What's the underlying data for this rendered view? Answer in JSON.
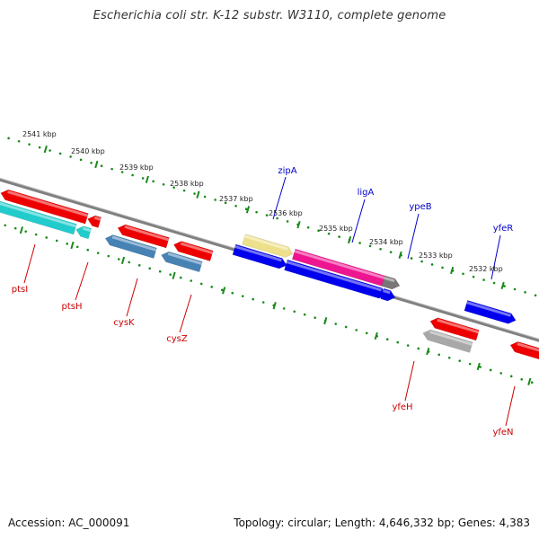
{
  "title": "Escherichia coli str. K-12 substr. W3110, complete genome",
  "footer": {
    "accession_label": "Accession:",
    "accession": "AC_000091",
    "topology_label": "Topology:",
    "topology": "circular",
    "length_label": "Length:",
    "length": "4,646,332 bp",
    "genes_label": "Genes:",
    "genes": "4,383"
  },
  "scale": {
    "ticks": [
      "2541 kbp",
      "2540 kbp",
      "2539 kbp",
      "2538 kbp",
      "2537 kbp",
      "2536 kbp",
      "2535 kbp",
      "2534 kbp",
      "2533 kbp",
      "2532 kbp"
    ]
  },
  "colors": {
    "forward_label": "#0000cc",
    "reverse_label": "#cc0000",
    "backbone": "#808080",
    "tick_marks": "#1a8a1a",
    "red": "#ee0000",
    "cyan": "#22cccc",
    "steelblue": "#4682b4",
    "khaki": "#eee08a",
    "blue": "#0000ee",
    "magenta": "#ee1590",
    "gray": "#a8a8a8"
  },
  "genes": [
    {
      "name": "ptsI",
      "strand": "reverse",
      "color": "cyan"
    },
    {
      "name": "ptsH",
      "strand": "reverse",
      "color": "cyan"
    },
    {
      "name": "cysK",
      "strand": "reverse",
      "color": "steelblue"
    },
    {
      "name": "cysZ",
      "strand": "reverse",
      "color": "steelblue"
    },
    {
      "name": "zipA",
      "strand": "forward",
      "color": "khaki"
    },
    {
      "name": "ligA",
      "strand": "forward",
      "color": "magenta"
    },
    {
      "name": "ypeB",
      "strand": "forward",
      "color": "blue"
    },
    {
      "name": "yfeR",
      "strand": "forward",
      "color": "blue"
    },
    {
      "name": "yfeH",
      "strand": "reverse",
      "color": "gray"
    },
    {
      "name": "yfeN",
      "strand": "reverse",
      "color": "red"
    }
  ]
}
